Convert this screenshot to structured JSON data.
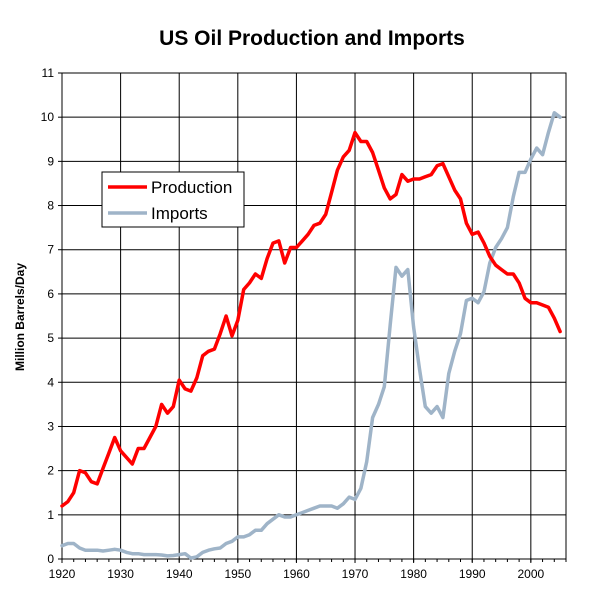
{
  "chart_data": {
    "type": "line",
    "title": "US Oil Production and Imports",
    "xlabel": "",
    "ylabel": "Million Barrels/Day",
    "xlim": [
      1920,
      2006
    ],
    "ylim": [
      0,
      11
    ],
    "x_ticks": [
      "1920",
      "1930",
      "1940",
      "1950",
      "1960",
      "1970",
      "1980",
      "1990",
      "2000"
    ],
    "y_ticks": [
      "0",
      "1",
      "2",
      "3",
      "4",
      "5",
      "6",
      "7",
      "8",
      "9",
      "10",
      "11"
    ],
    "grid": true,
    "legend_position": "upper-left",
    "series": [
      {
        "name": "Production",
        "color": "#ff0000",
        "points": [
          [
            1920,
            1.2
          ],
          [
            1921,
            1.3
          ],
          [
            1922,
            1.5
          ],
          [
            1923,
            2.0
          ],
          [
            1924,
            1.95
          ],
          [
            1925,
            1.75
          ],
          [
            1926,
            1.7
          ],
          [
            1927,
            2.05
          ],
          [
            1928,
            2.4
          ],
          [
            1929,
            2.75
          ],
          [
            1930,
            2.45
          ],
          [
            1931,
            2.3
          ],
          [
            1932,
            2.15
          ],
          [
            1933,
            2.5
          ],
          [
            1934,
            2.5
          ],
          [
            1935,
            2.75
          ],
          [
            1936,
            3.0
          ],
          [
            1937,
            3.5
          ],
          [
            1938,
            3.3
          ],
          [
            1939,
            3.45
          ],
          [
            1940,
            4.05
          ],
          [
            1941,
            3.85
          ],
          [
            1942,
            3.8
          ],
          [
            1943,
            4.1
          ],
          [
            1944,
            4.6
          ],
          [
            1945,
            4.7
          ],
          [
            1946,
            4.75
          ],
          [
            1947,
            5.1
          ],
          [
            1948,
            5.5
          ],
          [
            1949,
            5.05
          ],
          [
            1950,
            5.4
          ],
          [
            1951,
            6.1
          ],
          [
            1952,
            6.25
          ],
          [
            1953,
            6.45
          ],
          [
            1954,
            6.35
          ],
          [
            1955,
            6.8
          ],
          [
            1956,
            7.15
          ],
          [
            1957,
            7.2
          ],
          [
            1958,
            6.7
          ],
          [
            1959,
            7.05
          ],
          [
            1960,
            7.05
          ],
          [
            1961,
            7.2
          ],
          [
            1962,
            7.35
          ],
          [
            1963,
            7.55
          ],
          [
            1964,
            7.6
          ],
          [
            1965,
            7.8
          ],
          [
            1966,
            8.3
          ],
          [
            1967,
            8.8
          ],
          [
            1968,
            9.1
          ],
          [
            1969,
            9.25
          ],
          [
            1970,
            9.65
          ],
          [
            1971,
            9.45
          ],
          [
            1972,
            9.45
          ],
          [
            1973,
            9.2
          ],
          [
            1974,
            8.8
          ],
          [
            1975,
            8.4
          ],
          [
            1976,
            8.15
          ],
          [
            1977,
            8.25
          ],
          [
            1978,
            8.7
          ],
          [
            1979,
            8.55
          ],
          [
            1980,
            8.6
          ],
          [
            1981,
            8.6
          ],
          [
            1982,
            8.65
          ],
          [
            1983,
            8.7
          ],
          [
            1984,
            8.9
          ],
          [
            1985,
            8.95
          ],
          [
            1986,
            8.65
          ],
          [
            1987,
            8.35
          ],
          [
            1988,
            8.15
          ],
          [
            1989,
            7.6
          ],
          [
            1990,
            7.35
          ],
          [
            1991,
            7.4
          ],
          [
            1992,
            7.15
          ],
          [
            1993,
            6.85
          ],
          [
            1994,
            6.65
          ],
          [
            1995,
            6.55
          ],
          [
            1996,
            6.45
          ],
          [
            1997,
            6.45
          ],
          [
            1998,
            6.25
          ],
          [
            1999,
            5.9
          ],
          [
            2000,
            5.8
          ],
          [
            2001,
            5.8
          ],
          [
            2002,
            5.75
          ],
          [
            2003,
            5.7
          ],
          [
            2004,
            5.45
          ],
          [
            2005,
            5.15
          ]
        ]
      },
      {
        "name": "Imports",
        "color": "#9fb4c8",
        "points": [
          [
            1920,
            0.3
          ],
          [
            1921,
            0.35
          ],
          [
            1922,
            0.35
          ],
          [
            1923,
            0.25
          ],
          [
            1924,
            0.2
          ],
          [
            1925,
            0.2
          ],
          [
            1926,
            0.2
          ],
          [
            1927,
            0.18
          ],
          [
            1928,
            0.2
          ],
          [
            1929,
            0.22
          ],
          [
            1930,
            0.2
          ],
          [
            1931,
            0.15
          ],
          [
            1932,
            0.12
          ],
          [
            1933,
            0.12
          ],
          [
            1934,
            0.1
          ],
          [
            1935,
            0.1
          ],
          [
            1936,
            0.1
          ],
          [
            1937,
            0.09
          ],
          [
            1938,
            0.07
          ],
          [
            1939,
            0.08
          ],
          [
            1940,
            0.1
          ],
          [
            1941,
            0.12
          ],
          [
            1942,
            0.02
          ],
          [
            1943,
            0.05
          ],
          [
            1944,
            0.15
          ],
          [
            1945,
            0.2
          ],
          [
            1946,
            0.23
          ],
          [
            1947,
            0.25
          ],
          [
            1948,
            0.35
          ],
          [
            1949,
            0.4
          ],
          [
            1950,
            0.5
          ],
          [
            1951,
            0.5
          ],
          [
            1952,
            0.55
          ],
          [
            1953,
            0.65
          ],
          [
            1954,
            0.65
          ],
          [
            1955,
            0.8
          ],
          [
            1956,
            0.9
          ],
          [
            1957,
            1.0
          ],
          [
            1958,
            0.95
          ],
          [
            1959,
            0.95
          ],
          [
            1960,
            1.0
          ],
          [
            1961,
            1.05
          ],
          [
            1962,
            1.1
          ],
          [
            1963,
            1.15
          ],
          [
            1964,
            1.2
          ],
          [
            1965,
            1.2
          ],
          [
            1966,
            1.2
          ],
          [
            1967,
            1.15
          ],
          [
            1968,
            1.25
          ],
          [
            1969,
            1.4
          ],
          [
            1970,
            1.35
          ],
          [
            1971,
            1.6
          ],
          [
            1972,
            2.2
          ],
          [
            1973,
            3.2
          ],
          [
            1974,
            3.5
          ],
          [
            1975,
            3.9
          ],
          [
            1976,
            5.3
          ],
          [
            1977,
            6.6
          ],
          [
            1978,
            6.4
          ],
          [
            1979,
            6.55
          ],
          [
            1980,
            5.25
          ],
          [
            1981,
            4.3
          ],
          [
            1982,
            3.45
          ],
          [
            1983,
            3.3
          ],
          [
            1984,
            3.45
          ],
          [
            1985,
            3.2
          ],
          [
            1986,
            4.2
          ],
          [
            1987,
            4.7
          ],
          [
            1988,
            5.1
          ],
          [
            1989,
            5.85
          ],
          [
            1990,
            5.9
          ],
          [
            1991,
            5.8
          ],
          [
            1992,
            6.05
          ],
          [
            1993,
            6.7
          ],
          [
            1994,
            7.05
          ],
          [
            1995,
            7.25
          ],
          [
            1996,
            7.5
          ],
          [
            1997,
            8.2
          ],
          [
            1998,
            8.75
          ],
          [
            1999,
            8.75
          ],
          [
            2000,
            9.05
          ],
          [
            2001,
            9.3
          ],
          [
            2002,
            9.15
          ],
          [
            2003,
            9.65
          ],
          [
            2004,
            10.1
          ],
          [
            2005,
            10.0
          ]
        ]
      }
    ]
  }
}
